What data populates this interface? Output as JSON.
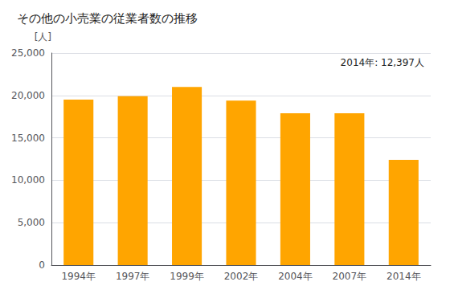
{
  "chart_data": {
    "type": "bar",
    "title": "その他の小売業の従業者数の推移",
    "ylabel": "[人]",
    "annotation": "2014年: 12,397人",
    "categories": [
      "1994年",
      "1997年",
      "1999年",
      "2002年",
      "2004年",
      "2007年",
      "2014年"
    ],
    "values": [
      19500,
      19900,
      21000,
      19400,
      17900,
      17900,
      12397
    ],
    "color": "#FFA500",
    "ylim": [
      0,
      25000
    ],
    "yticks": [
      0,
      {
        "value": 5000,
        "label": "5,000"
      },
      {
        "value": 10000,
        "label": "10,000"
      },
      {
        "value": 15000,
        "label": "15,000"
      },
      {
        "value": 20000,
        "label": "20,000"
      },
      {
        "value": 25000,
        "label": "25,000"
      }
    ],
    "grid": true
  }
}
